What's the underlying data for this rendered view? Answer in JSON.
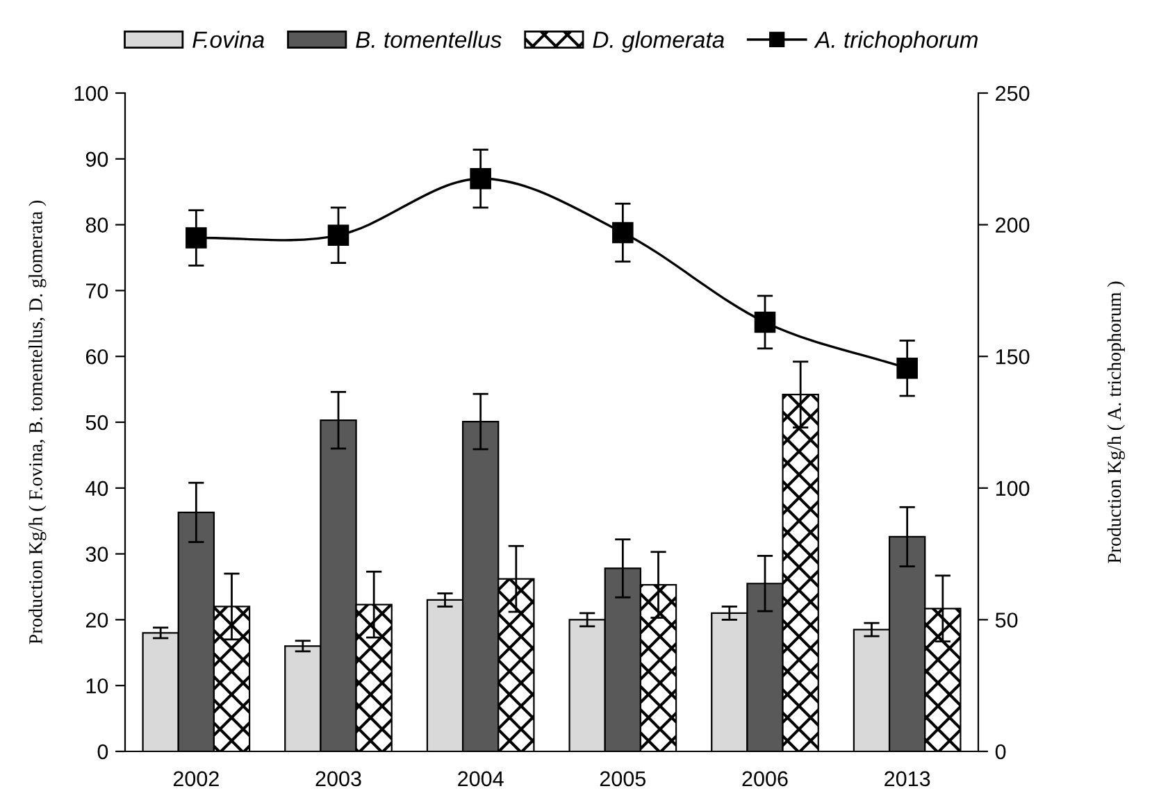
{
  "chart_data": {
    "type": "bar",
    "categories": [
      "2002",
      "2003",
      "2004",
      "2005",
      "2006",
      "2013"
    ],
    "series": [
      {
        "name": "F.ovina",
        "color": "#d9d9d9",
        "values": [
          18,
          16,
          23,
          20,
          21,
          18.5
        ],
        "errors": [
          0.8,
          0.8,
          1,
          1,
          1,
          1
        ]
      },
      {
        "name": "B. tomentellus",
        "color": "#595959",
        "values": [
          36.3,
          50.3,
          50.1,
          27.8,
          25.5,
          32.6
        ],
        "errors": [
          4.5,
          4.3,
          4.2,
          4.4,
          4.2,
          4.5
        ]
      },
      {
        "name": "D. glomerata",
        "color": "#000000",
        "values": [
          22,
          22.3,
          26.2,
          25.3,
          54.2,
          21.7
        ],
        "errors": [
          5,
          5,
          5,
          5,
          5,
          5
        ]
      },
      {
        "name": "A. trichophorum",
        "type": "line",
        "axis": "y2",
        "color": "#000000",
        "marker": "square",
        "values": [
          195,
          196,
          217.5,
          197,
          163,
          145.5
        ],
        "errors": [
          10.5,
          10.5,
          11,
          11,
          10,
          10.5
        ]
      }
    ],
    "ylabel": "Production Kg/h ( F.ovina, B. tomentellus, D. glomerata )",
    "y2label": "Production Kg/h ( A. trichophorum )",
    "ylim": [
      0,
      100
    ],
    "yticks": [
      0,
      10,
      20,
      30,
      40,
      50,
      60,
      70,
      80,
      90,
      100
    ],
    "y2lim": [
      0,
      250
    ],
    "y2ticks": [
      0,
      50,
      100,
      150,
      200,
      250
    ],
    "grid": false,
    "legend": "top"
  }
}
